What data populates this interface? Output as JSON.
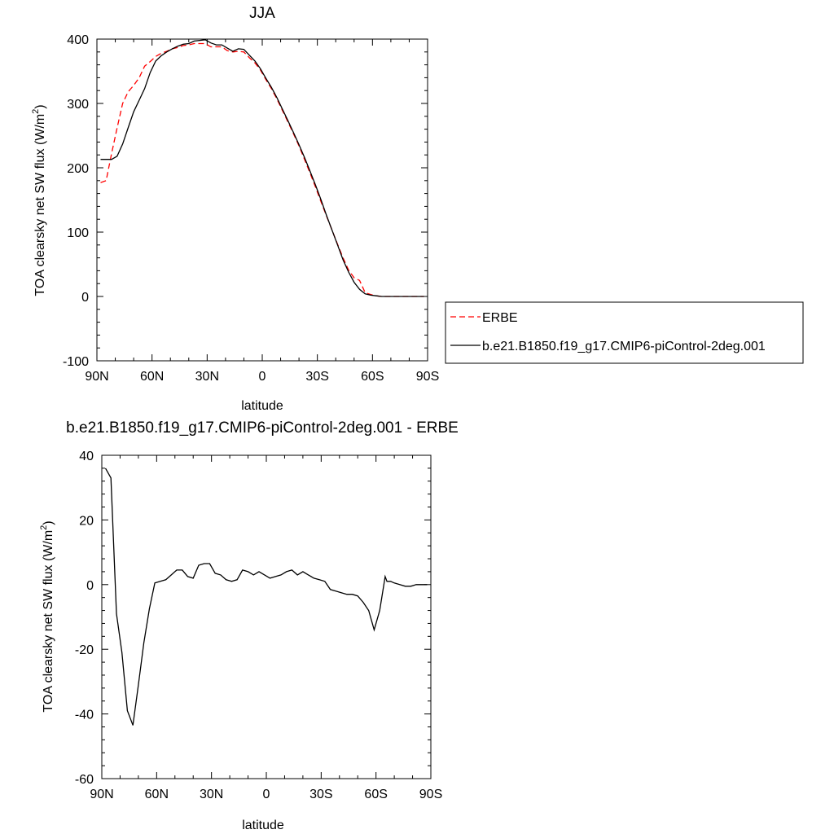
{
  "chart_data": [
    {
      "type": "line",
      "title": "JJA",
      "xlabel": "latitude",
      "ylabel": "TOA clearsky net SW flux (W/m",
      "ylabel_sup": "2",
      "ylabel_tail": ")",
      "xlim": [
        90,
        -90
      ],
      "ylim": [
        -100,
        400
      ],
      "xticks": [
        90,
        60,
        30,
        0,
        -30,
        -60,
        -90
      ],
      "xtick_labels": [
        "90N",
        "60N",
        "30N",
        "0",
        "30S",
        "60S",
        "90S"
      ],
      "yticks": [
        -100,
        0,
        100,
        200,
        300,
        400
      ],
      "ytick_labels": [
        "-100",
        "0",
        "100",
        "200",
        "300",
        "400"
      ],
      "legend": "right",
      "grid": false,
      "series": [
        {
          "name": "ERBE",
          "color": "#ff0000",
          "dash": "dashed",
          "x": [
            88,
            85,
            82,
            79,
            76,
            73,
            70,
            67,
            64,
            61,
            58,
            55,
            52,
            49,
            46,
            43,
            40,
            37,
            34,
            31,
            28,
            25,
            22,
            19,
            16,
            13,
            10,
            7,
            4,
            1,
            -2,
            -5,
            -8,
            -11,
            -14,
            -17,
            -20,
            -23,
            -26,
            -29,
            -32,
            -35,
            -38,
            -41,
            -44,
            -47,
            -50,
            -53,
            -56,
            -59,
            -62,
            -65,
            -68,
            -71,
            -74,
            -77,
            -80,
            -83,
            -86,
            -88
          ],
          "y": [
            177,
            180,
            222,
            262,
            300,
            318,
            328,
            340,
            358,
            365,
            373,
            378,
            381,
            385,
            387,
            390,
            391,
            393,
            393,
            393,
            388,
            388,
            388,
            382,
            380,
            381,
            380,
            371,
            363,
            352,
            337,
            323,
            307,
            289,
            271,
            253,
            234,
            213,
            192,
            170,
            147,
            125,
            103,
            81,
            60,
            41,
            29,
            25,
            6,
            3,
            1,
            0,
            0,
            0,
            0,
            0,
            0,
            0,
            0,
            0
          ]
        },
        {
          "name": "b.e21.B1850.f19_g17.CMIP6-piControl-2deg.001",
          "color": "#000000",
          "dash": "solid",
          "x": [
            88,
            85,
            82,
            79,
            76,
            73,
            70,
            67,
            64,
            61,
            58,
            55,
            52,
            49,
            46,
            43,
            40,
            37,
            34,
            31,
            28,
            25,
            22,
            19,
            16,
            13,
            10,
            7,
            4,
            1,
            -2,
            -5,
            -8,
            -11,
            -14,
            -17,
            -20,
            -23,
            -26,
            -29,
            -32,
            -35,
            -38,
            -41,
            -44,
            -47,
            -50,
            -53,
            -56,
            -59,
            -62,
            -65,
            -68,
            -71,
            -74,
            -77,
            -80,
            -83,
            -86,
            -88
          ],
          "y": [
            213,
            213,
            213,
            218,
            237,
            262,
            287,
            305,
            323,
            348,
            366,
            374,
            380,
            385,
            389,
            392,
            393,
            397,
            398,
            399,
            394,
            391,
            391,
            386,
            381,
            385,
            384,
            375,
            366,
            354,
            339,
            325,
            309,
            291,
            273,
            255,
            236,
            216,
            195,
            173,
            150,
            126,
            103,
            80,
            57,
            38,
            22,
            11,
            4,
            2,
            1,
            0,
            0,
            0,
            0,
            0,
            0,
            0,
            0,
            0
          ]
        }
      ]
    },
    {
      "type": "line",
      "title": "b.e21.B1850.f19_g17.CMIP6-piControl-2deg.001 - ERBE",
      "xlabel": "latitude",
      "ylabel": "TOA clearsky net SW flux (W/m",
      "ylabel_sup": "2",
      "ylabel_tail": ")",
      "xlim": [
        90,
        -90
      ],
      "ylim": [
        -60,
        40
      ],
      "xticks": [
        90,
        60,
        30,
        0,
        -30,
        -60,
        -90
      ],
      "xtick_labels": [
        "90N",
        "60N",
        "30N",
        "0",
        "30S",
        "60S",
        "90S"
      ],
      "yticks": [
        -60,
        -40,
        -20,
        0,
        20,
        40
      ],
      "ytick_labels": [
        "-60",
        "-40",
        "-20",
        "0",
        "20",
        "40"
      ],
      "grid": false,
      "series": [
        {
          "color": "#000000",
          "dash": "solid",
          "x": [
            88,
            85,
            82,
            79,
            76,
            73,
            70,
            67,
            64,
            61,
            58,
            55,
            52,
            49,
            46,
            43,
            40,
            37,
            34,
            31,
            28,
            25,
            22,
            19,
            16,
            13,
            10,
            7,
            4,
            1,
            -2,
            -5,
            -8,
            -11,
            -14,
            -17,
            -20,
            -23,
            -26,
            -29,
            -32,
            -35,
            -38,
            -41,
            -44,
            -47,
            -50,
            -53,
            -56,
            -59,
            -62,
            -65,
            -66,
            -68,
            -70,
            -73,
            -76,
            -79,
            -82,
            -85,
            -88
          ],
          "y": [
            36,
            33,
            -9,
            -21,
            -39,
            -43.5,
            -31,
            -18,
            -7.5,
            0.5,
            1,
            1.5,
            3,
            4.5,
            4.5,
            2.5,
            2,
            6,
            6.5,
            6.5,
            3.5,
            3,
            1.5,
            1,
            1.5,
            4.5,
            4,
            3,
            4,
            3,
            2,
            2.5,
            3,
            4,
            4.5,
            3,
            4,
            3,
            2,
            1.5,
            1,
            -1.5,
            -2,
            -2.5,
            -3,
            -3,
            -3.5,
            -5.5,
            -8,
            -14,
            -8,
            2.5,
            1,
            1,
            0.5,
            0,
            -0.5,
            -0.5,
            0,
            0,
            0
          ]
        }
      ]
    }
  ]
}
